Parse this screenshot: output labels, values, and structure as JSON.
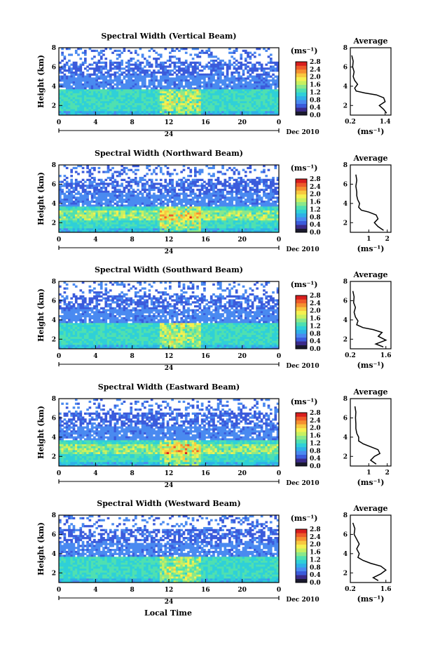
{
  "colors": {
    "colormap": [
      "#1a1a2e",
      "#3a2a8a",
      "#3b5bdb",
      "#4a8af0",
      "#2fb0e8",
      "#2fd0d8",
      "#4fe0b0",
      "#8be88a",
      "#c8f060",
      "#f5f050",
      "#f8c840",
      "#f59030",
      "#ee5a2a",
      "#d81e1e"
    ]
  },
  "figure": {
    "xlabel": "Local Time",
    "date_label": "Dec 2010",
    "day_label": "24",
    "ylabel": "Height (km)",
    "unit_label": "(ms⁻¹)",
    "avg_title": "Average",
    "avg_xlabel": "(ms⁻¹)"
  },
  "chart_data": [
    {
      "type": "heatmap",
      "title": "Spectral Width (Vertical Beam)",
      "x_ticks": [
        "0",
        "4",
        "8",
        "12",
        "16",
        "20",
        "0"
      ],
      "y_ticks": [
        "2",
        "4",
        "6",
        "8"
      ],
      "ylim": [
        1,
        8
      ],
      "xlim": [
        0,
        24
      ],
      "colorbar_ticks": [
        "0.0",
        "0.4",
        "0.8",
        "1.2",
        "1.6",
        "2.0",
        "2.4",
        "2.8"
      ],
      "clim": [
        0,
        2.8
      ],
      "profile": {
        "x_ticks": [
          "0.2",
          "1.4"
        ],
        "xlim": [
          0.2,
          1.6
        ],
        "ylim": [
          1,
          8
        ],
        "y_ticks": [
          "2",
          "4",
          "6",
          "8"
        ],
        "points": [
          [
            1.45,
            1.2
          ],
          [
            1.35,
            1.6
          ],
          [
            1.2,
            2.0
          ],
          [
            1.4,
            2.4
          ],
          [
            1.35,
            2.8
          ],
          [
            1.1,
            3.1
          ],
          [
            0.7,
            3.3
          ],
          [
            0.4,
            3.5
          ],
          [
            0.35,
            3.8
          ],
          [
            0.45,
            4.2
          ],
          [
            0.35,
            4.6
          ],
          [
            0.3,
            5.0
          ],
          [
            0.33,
            5.5
          ],
          [
            0.28,
            6.0
          ],
          [
            0.3,
            6.6
          ],
          [
            0.25,
            7.2
          ]
        ]
      }
    },
    {
      "type": "heatmap",
      "title": "Spectral Width (Northward Beam)",
      "x_ticks": [
        "0",
        "4",
        "8",
        "12",
        "16",
        "20",
        "0"
      ],
      "y_ticks": [
        "2",
        "4",
        "6",
        "8"
      ],
      "ylim": [
        1,
        8
      ],
      "xlim": [
        0,
        24
      ],
      "colorbar_ticks": [
        "0.0",
        "0.4",
        "0.8",
        "1.2",
        "1.6",
        "2.0",
        "2.4",
        "2.8"
      ],
      "clim": [
        0,
        2.8
      ],
      "profile": {
        "x_ticks": [
          "1",
          "2"
        ],
        "xlim": [
          0,
          2.2
        ],
        "ylim": [
          1,
          8
        ],
        "y_ticks": [
          "2",
          "4",
          "6",
          "8"
        ],
        "points": [
          [
            1.8,
            1.2
          ],
          [
            1.5,
            1.6
          ],
          [
            1.3,
            2.0
          ],
          [
            1.5,
            2.4
          ],
          [
            1.4,
            2.8
          ],
          [
            1.0,
            3.1
          ],
          [
            0.6,
            3.3
          ],
          [
            0.45,
            3.6
          ],
          [
            0.5,
            4.0
          ],
          [
            0.4,
            4.4
          ],
          [
            0.35,
            4.8
          ],
          [
            0.35,
            5.2
          ],
          [
            0.3,
            5.8
          ],
          [
            0.35,
            6.4
          ],
          [
            0.3,
            7.0
          ]
        ]
      }
    },
    {
      "type": "heatmap",
      "title": "Spectral Width (Southward Beam)",
      "x_ticks": [
        "0",
        "4",
        "8",
        "12",
        "16",
        "20",
        "0"
      ],
      "y_ticks": [
        "2",
        "4",
        "6",
        "8"
      ],
      "ylim": [
        1,
        8
      ],
      "xlim": [
        0,
        24
      ],
      "colorbar_ticks": [
        "0.0",
        "0.4",
        "0.8",
        "1.2",
        "1.6",
        "2.0",
        "2.4",
        "2.8"
      ],
      "clim": [
        0,
        2.8
      ],
      "profile": {
        "x_ticks": [
          "0.2",
          "1.6"
        ],
        "xlim": [
          0.2,
          1.8
        ],
        "ylim": [
          1,
          8
        ],
        "y_ticks": [
          "2",
          "4",
          "6",
          "8"
        ],
        "points": [
          [
            1.5,
            1.2
          ],
          [
            1.2,
            1.5
          ],
          [
            1.6,
            1.9
          ],
          [
            1.3,
            2.3
          ],
          [
            1.45,
            2.7
          ],
          [
            1.1,
            3.0
          ],
          [
            0.7,
            3.2
          ],
          [
            0.45,
            3.5
          ],
          [
            0.5,
            3.9
          ],
          [
            0.4,
            4.3
          ],
          [
            0.35,
            4.8
          ],
          [
            0.4,
            5.3
          ],
          [
            0.33,
            5.8
          ],
          [
            0.35,
            6.4
          ],
          [
            0.3,
            7.0
          ]
        ]
      }
    },
    {
      "type": "heatmap",
      "title": "Spectral Width (Eastward Beam)",
      "x_ticks": [
        "0",
        "4",
        "8",
        "12",
        "16",
        "20",
        "0"
      ],
      "y_ticks": [
        "2",
        "4",
        "6",
        "8"
      ],
      "ylim": [
        1,
        8
      ],
      "xlim": [
        0,
        24
      ],
      "colorbar_ticks": [
        "0.0",
        "0.4",
        "0.8",
        "1.2",
        "1.6",
        "2.0",
        "2.4",
        "2.8"
      ],
      "clim": [
        0,
        2.8
      ],
      "profile": {
        "x_ticks": [
          "1",
          "2"
        ],
        "xlim": [
          0,
          2.2
        ],
        "ylim": [
          1,
          8
        ],
        "y_ticks": [
          "2",
          "4",
          "6",
          "8"
        ],
        "points": [
          [
            1.4,
            1.2
          ],
          [
            1.1,
            1.6
          ],
          [
            1.3,
            2.0
          ],
          [
            1.6,
            2.3
          ],
          [
            1.5,
            2.7
          ],
          [
            1.1,
            3.0
          ],
          [
            0.7,
            3.3
          ],
          [
            0.45,
            3.6
          ],
          [
            0.45,
            4.0
          ],
          [
            0.35,
            4.4
          ],
          [
            0.3,
            4.9
          ],
          [
            0.3,
            5.4
          ],
          [
            0.28,
            6.0
          ],
          [
            0.3,
            6.6
          ],
          [
            0.25,
            7.2
          ]
        ]
      }
    },
    {
      "type": "heatmap",
      "title": "Spectral Width (Westward Beam)",
      "x_ticks": [
        "0",
        "4",
        "8",
        "12",
        "16",
        "20",
        "0"
      ],
      "y_ticks": [
        "2",
        "4",
        "6",
        "8"
      ],
      "ylim": [
        1,
        8
      ],
      "xlim": [
        0,
        24
      ],
      "colorbar_ticks": [
        "0.0",
        "0.4",
        "0.8",
        "1.2",
        "1.6",
        "2.0",
        "2.4",
        "2.8"
      ],
      "clim": [
        0,
        2.8
      ],
      "profile": {
        "x_ticks": [
          "0.2",
          "1.6"
        ],
        "xlim": [
          0.2,
          1.8
        ],
        "ylim": [
          1,
          8
        ],
        "y_ticks": [
          "2",
          "4",
          "6",
          "8"
        ],
        "points": [
          [
            1.3,
            1.2
          ],
          [
            1.1,
            1.5
          ],
          [
            1.4,
            1.9
          ],
          [
            1.6,
            2.3
          ],
          [
            1.4,
            2.7
          ],
          [
            1.0,
            3.0
          ],
          [
            0.7,
            3.3
          ],
          [
            0.5,
            3.6
          ],
          [
            0.55,
            4.0
          ],
          [
            0.45,
            4.5
          ],
          [
            0.55,
            5.0
          ],
          [
            0.45,
            5.5
          ],
          [
            0.35,
            6.0
          ],
          [
            0.38,
            6.6
          ],
          [
            0.3,
            7.2
          ]
        ]
      }
    }
  ]
}
